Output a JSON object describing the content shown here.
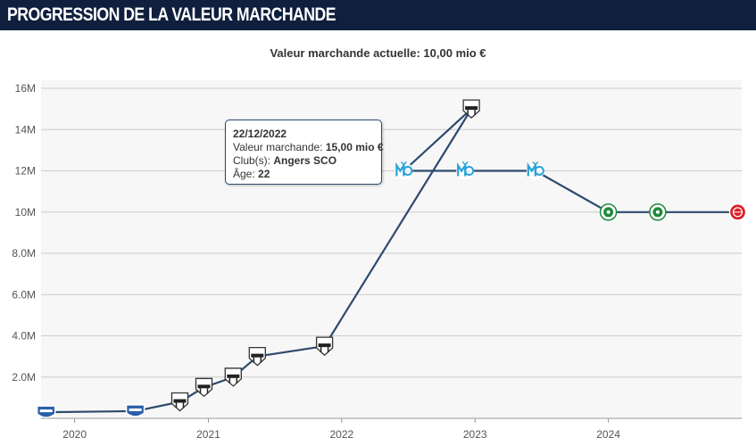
{
  "header": {
    "title": "PROGRESSION DE LA VALEUR MARCHANDE"
  },
  "subtitle": "Valeur marchande actuelle: 10,00 mio €",
  "chart_data": {
    "type": "line",
    "title": "PROGRESSION DE LA VALEUR MARCHANDE",
    "subtitle": "Valeur marchande actuelle: 10,00 mio €",
    "x_ticks": [
      "2020",
      "2021",
      "2022",
      "2023",
      "2024"
    ],
    "y_ticks": [
      "2.0M",
      "4.0M",
      "6.0M",
      "8.0M",
      "10M",
      "12M",
      "14M",
      "16M"
    ],
    "ylim": [
      0,
      16000000
    ],
    "xlim": [
      "2019-10-01",
      "2024-12-31"
    ],
    "grid": true,
    "series": [
      {
        "points": [
          {
            "date": "2019-10-15",
            "value": 300000,
            "club": "troyes"
          },
          {
            "date": "2020-06-15",
            "value": 350000,
            "club": "troyes"
          },
          {
            "date": "2020-10-15",
            "value": 800000,
            "club": "angers"
          },
          {
            "date": "2020-12-20",
            "value": 1500000,
            "club": "angers"
          },
          {
            "date": "2021-03-10",
            "value": 2000000,
            "club": "angers"
          },
          {
            "date": "2021-05-15",
            "value": 3000000,
            "club": "angers"
          },
          {
            "date": "2021-11-15",
            "value": 3500000,
            "club": "angers"
          },
          {
            "date": "2022-12-22",
            "value": 15000000,
            "club": "angers"
          },
          {
            "date": "2022-06-20",
            "value": 12000000,
            "club": "marseille"
          },
          {
            "date": "2022-12-05",
            "value": 12000000,
            "club": "marseille"
          },
          {
            "date": "2023-06-15",
            "value": 12000000,
            "club": "marseille"
          },
          {
            "date": "2024-01-01",
            "value": 10000000,
            "club": "panathinaikos"
          },
          {
            "date": "2024-05-15",
            "value": 10000000,
            "club": "panathinaikos"
          },
          {
            "date": "2024-12-20",
            "value": 10000000,
            "club": "girona"
          }
        ]
      }
    ],
    "tooltip": {
      "date": "22/12/2022",
      "value_label": "Valeur marchande:",
      "value": "15,00 mio €",
      "club_label": "Club(s):",
      "club": "Angers SCO",
      "age_label": "Âge:",
      "age": "22"
    },
    "colors": {
      "line": "#2d4a6e",
      "grid": "#cccccc",
      "plot_bg": "#f7f7f7",
      "header_bg": "#0f1f3d"
    }
  }
}
